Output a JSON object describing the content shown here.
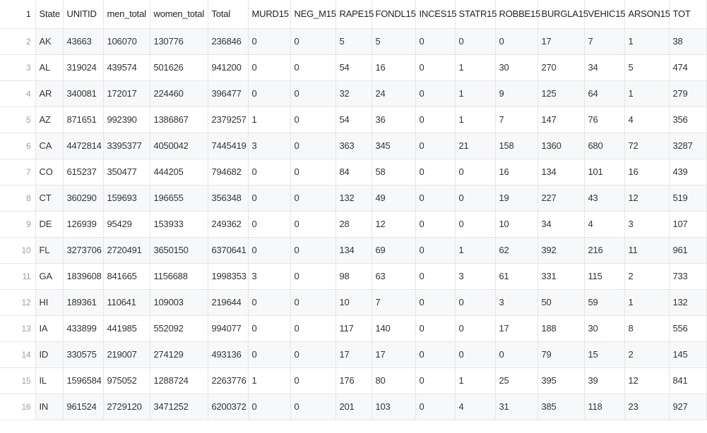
{
  "columns": [
    "State",
    "UNITID",
    "men_total",
    "women_total",
    "Total",
    "MURD15",
    "NEG_M15",
    "RAPE15",
    "FONDL15",
    "INCES15",
    "STATR15",
    "ROBBE15",
    "BURGLA15",
    "VEHIC15",
    "ARSON15",
    "TOT"
  ],
  "rows": [
    {
      "n": "2",
      "cells": [
        "AK",
        "43663",
        "106070",
        "130776",
        "236846",
        "0",
        "0",
        "5",
        "5",
        "0",
        "0",
        "0",
        "17",
        "7",
        "1",
        "38"
      ]
    },
    {
      "n": "3",
      "cells": [
        "AL",
        "319024",
        "439574",
        "501626",
        "941200",
        "0",
        "0",
        "54",
        "16",
        "0",
        "1",
        "30",
        "270",
        "34",
        "5",
        "474"
      ]
    },
    {
      "n": "4",
      "cells": [
        "AR",
        "340081",
        "172017",
        "224460",
        "396477",
        "0",
        "0",
        "32",
        "24",
        "0",
        "1",
        "9",
        "125",
        "64",
        "1",
        "279"
      ]
    },
    {
      "n": "5",
      "cells": [
        "AZ",
        "871651",
        "992390",
        "1386867",
        "2379257",
        "1",
        "0",
        "54",
        "36",
        "0",
        "1",
        "7",
        "147",
        "76",
        "4",
        "356"
      ]
    },
    {
      "n": "6",
      "cells": [
        "CA",
        "4472814",
        "3395377",
        "4050042",
        "7445419",
        "3",
        "0",
        "363",
        "345",
        "0",
        "21",
        "158",
        "1360",
        "680",
        "72",
        "3287"
      ]
    },
    {
      "n": "7",
      "cells": [
        "CO",
        "615237",
        "350477",
        "444205",
        "794682",
        "0",
        "0",
        "84",
        "58",
        "0",
        "0",
        "16",
        "134",
        "101",
        "16",
        "439"
      ]
    },
    {
      "n": "8",
      "cells": [
        "CT",
        "360290",
        "159693",
        "196655",
        "356348",
        "0",
        "0",
        "132",
        "49",
        "0",
        "0",
        "19",
        "227",
        "43",
        "12",
        "519"
      ]
    },
    {
      "n": "9",
      "cells": [
        "DE",
        "126939",
        "95429",
        "153933",
        "249362",
        "0",
        "0",
        "28",
        "12",
        "0",
        "0",
        "10",
        "34",
        "4",
        "3",
        "107"
      ]
    },
    {
      "n": "10",
      "cells": [
        "FL",
        "3273706",
        "2720491",
        "3650150",
        "6370641",
        "0",
        "0",
        "134",
        "69",
        "0",
        "1",
        "62",
        "392",
        "216",
        "11",
        "961"
      ]
    },
    {
      "n": "11",
      "cells": [
        "GA",
        "1839608",
        "841665",
        "1156688",
        "1998353",
        "3",
        "0",
        "98",
        "63",
        "0",
        "3",
        "61",
        "331",
        "115",
        "2",
        "733"
      ]
    },
    {
      "n": "12",
      "cells": [
        "HI",
        "189361",
        "110641",
        "109003",
        "219644",
        "0",
        "0",
        "10",
        "7",
        "0",
        "0",
        "3",
        "50",
        "59",
        "1",
        "132"
      ]
    },
    {
      "n": "13",
      "cells": [
        "IA",
        "433899",
        "441985",
        "552092",
        "994077",
        "0",
        "0",
        "117",
        "140",
        "0",
        "0",
        "17",
        "188",
        "30",
        "8",
        "556"
      ]
    },
    {
      "n": "14",
      "cells": [
        "ID",
        "330575",
        "219007",
        "274129",
        "493136",
        "0",
        "0",
        "17",
        "17",
        "0",
        "0",
        "0",
        "79",
        "15",
        "2",
        "145"
      ]
    },
    {
      "n": "15",
      "cells": [
        "IL",
        "1596584",
        "975052",
        "1288724",
        "2263776",
        "1",
        "0",
        "176",
        "80",
        "0",
        "1",
        "25",
        "395",
        "39",
        "12",
        "841"
      ]
    },
    {
      "n": "16",
      "cells": [
        "IN",
        "961524",
        "2729120",
        "3471252",
        "6200372",
        "0",
        "0",
        "201",
        "103",
        "0",
        "4",
        "31",
        "385",
        "118",
        "23",
        "927"
      ]
    }
  ]
}
